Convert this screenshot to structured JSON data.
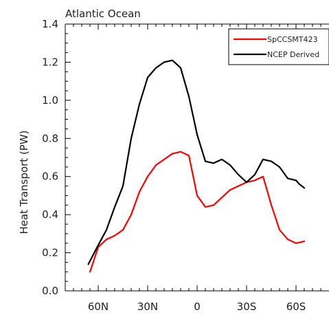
{
  "chart_data": {
    "type": "line",
    "title": "Atlantic Ocean",
    "xlabel": "",
    "ylabel": "Heat Transport (PW)",
    "xlim": [
      80,
      -80
    ],
    "ylim": [
      0.0,
      1.4
    ],
    "xticks": [
      {
        "value": 60,
        "label": "60N"
      },
      {
        "value": 30,
        "label": "30N"
      },
      {
        "value": 0,
        "label": "0"
      },
      {
        "value": -30,
        "label": "30S"
      },
      {
        "value": -60,
        "label": "60S"
      }
    ],
    "yticks": [
      {
        "value": 0.0,
        "label": "0.0"
      },
      {
        "value": 0.2,
        "label": "0.2"
      },
      {
        "value": 0.4,
        "label": "0.4"
      },
      {
        "value": 0.6,
        "label": "0.6"
      },
      {
        "value": 0.8,
        "label": "0.8"
      },
      {
        "value": 1.0,
        "label": "1.0"
      },
      {
        "value": 1.2,
        "label": "1.2"
      },
      {
        "value": 1.4,
        "label": "1.4"
      }
    ],
    "grid": false,
    "legend_position": "top-right",
    "series": [
      {
        "name": "SpCCSMT423",
        "color": "#ff0000",
        "points": [
          [
            65,
            0.1
          ],
          [
            60,
            0.23
          ],
          [
            55,
            0.27
          ],
          [
            50,
            0.29
          ],
          [
            45,
            0.32
          ],
          [
            40,
            0.4
          ],
          [
            35,
            0.52
          ],
          [
            30,
            0.6
          ],
          [
            25,
            0.66
          ],
          [
            20,
            0.69
          ],
          [
            15,
            0.72
          ],
          [
            10,
            0.73
          ],
          [
            5,
            0.71
          ],
          [
            0,
            0.5
          ],
          [
            -5,
            0.44
          ],
          [
            -10,
            0.45
          ],
          [
            -15,
            0.49
          ],
          [
            -20,
            0.53
          ],
          [
            -25,
            0.55
          ],
          [
            -30,
            0.57
          ],
          [
            -35,
            0.58
          ],
          [
            -40,
            0.6
          ],
          [
            -45,
            0.45
          ],
          [
            -50,
            0.32
          ],
          [
            -55,
            0.27
          ],
          [
            -60,
            0.25
          ],
          [
            -65,
            0.26
          ]
        ]
      },
      {
        "name": "NCEP Derived",
        "color": "#000000",
        "points": [
          [
            66,
            0.14
          ],
          [
            60,
            0.24
          ],
          [
            55,
            0.32
          ],
          [
            50,
            0.44
          ],
          [
            45,
            0.55
          ],
          [
            40,
            0.8
          ],
          [
            35,
            0.98
          ],
          [
            30,
            1.12
          ],
          [
            25,
            1.17
          ],
          [
            20,
            1.2
          ],
          [
            15,
            1.21
          ],
          [
            10,
            1.17
          ],
          [
            5,
            1.02
          ],
          [
            0,
            0.82
          ],
          [
            -5,
            0.68
          ],
          [
            -10,
            0.67
          ],
          [
            -15,
            0.69
          ],
          [
            -20,
            0.66
          ],
          [
            -25,
            0.61
          ],
          [
            -30,
            0.57
          ],
          [
            -35,
            0.61
          ],
          [
            -40,
            0.69
          ],
          [
            -45,
            0.68
          ],
          [
            -50,
            0.65
          ],
          [
            -55,
            0.59
          ],
          [
            -60,
            0.58
          ],
          [
            -62,
            0.56
          ],
          [
            -65,
            0.54
          ]
        ]
      }
    ]
  }
}
